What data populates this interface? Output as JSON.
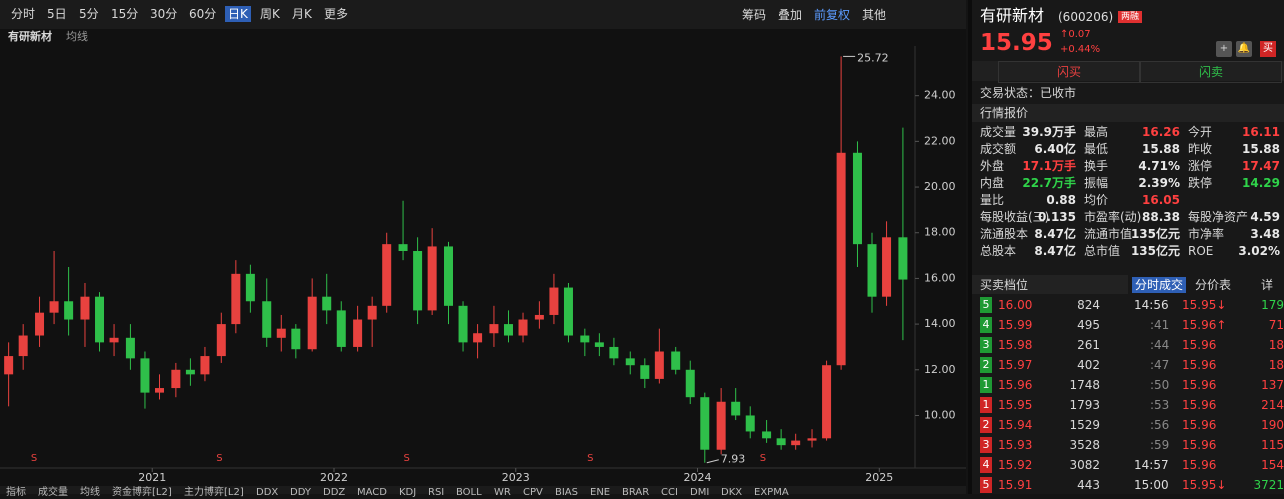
{
  "toolbar": {
    "periods": [
      "分时",
      "5日",
      "5分",
      "15分",
      "30分",
      "60分",
      "日K",
      "周K",
      "月K",
      "更多"
    ],
    "active": 6,
    "tools": [
      "筹码",
      "叠加",
      "前复权",
      "其他"
    ]
  },
  "chart_header": {
    "name": "有研新材",
    "indicator": "均线"
  },
  "chart_data": {
    "type": "candlestick",
    "up_color": "#e8423f",
    "down_color": "#2fbf4a",
    "x": [
      2020.21,
      2020.29,
      2020.38,
      2020.46,
      2020.54,
      2020.63,
      2020.71,
      2020.79,
      2020.88,
      2020.96,
      2021.04,
      2021.13,
      2021.21,
      2021.29,
      2021.38,
      2021.46,
      2021.54,
      2021.63,
      2021.71,
      2021.79,
      2021.88,
      2021.96,
      2022.04,
      2022.13,
      2022.21,
      2022.29,
      2022.38,
      2022.46,
      2022.54,
      2022.63,
      2022.71,
      2022.79,
      2022.88,
      2022.96,
      2023.04,
      2023.13,
      2023.21,
      2023.29,
      2023.38,
      2023.46,
      2023.54,
      2023.63,
      2023.71,
      2023.79,
      2023.88,
      2023.96,
      2024.04,
      2024.13,
      2024.21,
      2024.29,
      2024.38,
      2024.46,
      2024.54,
      2024.63,
      2024.71,
      2024.79,
      2024.88,
      2024.96,
      2025.04,
      2025.13
    ],
    "candles": [
      [
        11.8,
        13.2,
        10.4,
        12.6
      ],
      [
        12.6,
        14.0,
        12.0,
        13.5
      ],
      [
        13.5,
        15.2,
        13.0,
        14.5
      ],
      [
        14.5,
        17.2,
        14.0,
        15.0
      ],
      [
        15.0,
        16.5,
        13.5,
        14.2
      ],
      [
        14.2,
        15.8,
        13.0,
        15.2
      ],
      [
        15.2,
        15.4,
        12.8,
        13.2
      ],
      [
        13.2,
        14.0,
        12.6,
        13.4
      ],
      [
        13.4,
        14.0,
        12.0,
        12.5
      ],
      [
        12.5,
        12.8,
        10.3,
        11.0
      ],
      [
        11.0,
        11.8,
        10.7,
        11.2
      ],
      [
        11.2,
        12.3,
        10.8,
        12.0
      ],
      [
        12.0,
        12.5,
        11.3,
        11.8
      ],
      [
        11.8,
        13.0,
        11.5,
        12.6
      ],
      [
        12.6,
        14.5,
        12.3,
        14.0
      ],
      [
        14.0,
        16.8,
        13.6,
        16.2
      ],
      [
        16.2,
        16.6,
        14.5,
        15.0
      ],
      [
        15.0,
        16.0,
        13.0,
        13.4
      ],
      [
        13.4,
        14.4,
        12.8,
        13.8
      ],
      [
        13.8,
        14.0,
        12.5,
        12.9
      ],
      [
        12.9,
        16.0,
        12.8,
        15.2
      ],
      [
        15.2,
        16.2,
        14.0,
        14.6
      ],
      [
        14.6,
        15.0,
        12.8,
        13.0
      ],
      [
        13.0,
        14.8,
        12.8,
        14.2
      ],
      [
        14.2,
        15.2,
        13.0,
        14.8
      ],
      [
        14.8,
        18.0,
        14.5,
        17.5
      ],
      [
        17.5,
        19.4,
        16.8,
        17.2
      ],
      [
        17.2,
        17.8,
        14.0,
        14.6
      ],
      [
        14.6,
        18.2,
        14.4,
        17.4
      ],
      [
        17.4,
        17.6,
        14.0,
        14.8
      ],
      [
        14.8,
        15.0,
        12.8,
        13.2
      ],
      [
        13.2,
        14.0,
        12.5,
        13.6
      ],
      [
        13.6,
        14.8,
        13.0,
        14.0
      ],
      [
        14.0,
        14.6,
        13.2,
        13.5
      ],
      [
        13.5,
        14.5,
        13.2,
        14.2
      ],
      [
        14.2,
        15.0,
        13.8,
        14.4
      ],
      [
        14.4,
        16.2,
        14.0,
        15.6
      ],
      [
        15.6,
        15.8,
        13.2,
        13.5
      ],
      [
        13.5,
        13.8,
        12.6,
        13.2
      ],
      [
        13.2,
        13.6,
        12.6,
        13.0
      ],
      [
        13.0,
        13.4,
        12.2,
        12.5
      ],
      [
        12.5,
        12.8,
        11.8,
        12.2
      ],
      [
        12.2,
        12.5,
        11.2,
        11.6
      ],
      [
        11.6,
        13.8,
        11.4,
        12.8
      ],
      [
        12.8,
        13.0,
        11.8,
        12.0
      ],
      [
        12.0,
        12.4,
        10.5,
        10.8
      ],
      [
        10.8,
        11.0,
        7.93,
        8.5
      ],
      [
        8.5,
        11.2,
        8.3,
        10.6
      ],
      [
        10.6,
        11.2,
        9.8,
        10.0
      ],
      [
        10.0,
        10.4,
        9.0,
        9.3
      ],
      [
        9.3,
        9.8,
        8.8,
        9.0
      ],
      [
        9.0,
        9.4,
        8.5,
        8.7
      ],
      [
        8.7,
        9.2,
        8.5,
        8.9
      ],
      [
        8.9,
        9.4,
        8.6,
        9.0
      ],
      [
        9.0,
        12.4,
        8.9,
        12.2
      ],
      [
        12.2,
        25.72,
        12.0,
        21.5
      ],
      [
        21.5,
        22.0,
        16.5,
        17.5
      ],
      [
        17.5,
        18.0,
        14.5,
        15.2
      ],
      [
        15.2,
        18.5,
        14.8,
        17.8
      ],
      [
        17.8,
        22.6,
        13.3,
        15.95
      ]
    ],
    "xlim": [
      2020.19,
      2025.18
    ],
    "xticks": [
      2021,
      2022,
      2023,
      2024,
      2025
    ],
    "ylim": [
      7.7,
      26
    ],
    "yticks": [
      {
        "value": 10,
        "label": "10.00"
      },
      {
        "value": 12,
        "label": "12.00"
      },
      {
        "value": 14,
        "label": "14.00"
      },
      {
        "value": 16,
        "label": "16.00"
      },
      {
        "value": 18,
        "label": "18.00"
      },
      {
        "value": 20,
        "label": "20.00"
      },
      {
        "value": 22,
        "label": "22.00"
      },
      {
        "value": 24,
        "label": "24.00"
      }
    ],
    "signals": {
      "label": "S",
      "x": [
        2020.35,
        2021.37,
        2022.4,
        2023.41,
        2024.36
      ]
    },
    "grid": false
  },
  "indicator_tabs": [
    "指标",
    "成交量",
    "均线",
    "资金博弈[L2]",
    "主力博弈[L2]",
    "DDX",
    "DDY",
    "DDZ",
    "MACD",
    "KDJ",
    "RSI",
    "BOLL",
    "WR",
    "CPV",
    "BIAS",
    "ENE",
    "BRAR",
    "CCI",
    "DMI",
    "DKX",
    "EXPMA"
  ],
  "quote": {
    "name": "有研新材",
    "code": "(600206)",
    "badge": "两融",
    "price": 15.95,
    "change": "↑0.07",
    "pct": "+0.44%",
    "trade_button": "买"
  },
  "buttons": [
    "闪买",
    "闪卖"
  ],
  "status": "交易状态：已收市",
  "section": "行情报价",
  "stats": [
    [
      [
        "成交量",
        "39.9万手",
        ""
      ],
      [
        "最高",
        "16.26",
        "up"
      ],
      [
        "今开",
        "16.11",
        "up"
      ]
    ],
    [
      [
        "成交额",
        "6.40亿",
        ""
      ],
      [
        "最低",
        "15.88",
        ""
      ],
      [
        "昨收",
        "15.88",
        ""
      ]
    ],
    [
      [
        "外盘",
        "17.1万手",
        "up"
      ],
      [
        "换手",
        "4.71%",
        ""
      ],
      [
        "涨停",
        "17.47",
        "up"
      ]
    ],
    [
      [
        "内盘",
        "22.7万手",
        "down"
      ],
      [
        "振幅",
        "2.39%",
        ""
      ],
      [
        "跌停",
        "14.29",
        "down"
      ]
    ],
    [
      [
        "量比",
        "0.88",
        ""
      ],
      [
        "均价",
        "16.05",
        "up"
      ]
    ],
    [
      [
        "每股收益(三)",
        "0.135",
        ""
      ],
      [
        "市盈率(动)",
        "88.38",
        ""
      ],
      [
        "每股净资产",
        "4.59",
        ""
      ]
    ],
    [
      [
        "流通股本",
        "8.47亿",
        ""
      ],
      [
        "流通市值",
        "135亿元",
        ""
      ],
      [
        "市净率",
        "3.48",
        ""
      ]
    ],
    [
      [
        "总股本",
        "8.47亿",
        ""
      ],
      [
        "总市值",
        "135亿元",
        ""
      ],
      [
        "ROE",
        "3.02%",
        ""
      ]
    ]
  ],
  "book": {
    "title": "买卖档位",
    "rows": [
      [
        "5",
        "16.00",
        824
      ],
      [
        "4",
        "15.99",
        495
      ],
      [
        "3",
        "15.98",
        261
      ],
      [
        "2",
        "15.97",
        402
      ],
      [
        "1",
        "15.96",
        1748
      ],
      [
        "1",
        "15.95",
        1793
      ],
      [
        "2",
        "15.94",
        1529
      ],
      [
        "3",
        "15.93",
        3528
      ],
      [
        "4",
        "15.92",
        3082
      ],
      [
        "5",
        "15.91",
        443
      ]
    ]
  },
  "trades": {
    "tabs": [
      "分时成交",
      "分价表",
      "详"
    ],
    "rows": [
      [
        "14:56",
        "15.95↓",
        179
      ],
      [
        ":41",
        "15.96↑",
        71
      ],
      [
        ":44",
        "15.96",
        18
      ],
      [
        ":47",
        "15.96",
        18
      ],
      [
        ":50",
        "15.96",
        137
      ],
      [
        ":53",
        "15.96",
        214
      ],
      [
        ":56",
        "15.96",
        190
      ],
      [
        ":59",
        "15.96",
        115
      ],
      [
        "14:57",
        "15.96",
        154
      ],
      [
        "15:00",
        "15.95↓",
        3721
      ]
    ]
  }
}
